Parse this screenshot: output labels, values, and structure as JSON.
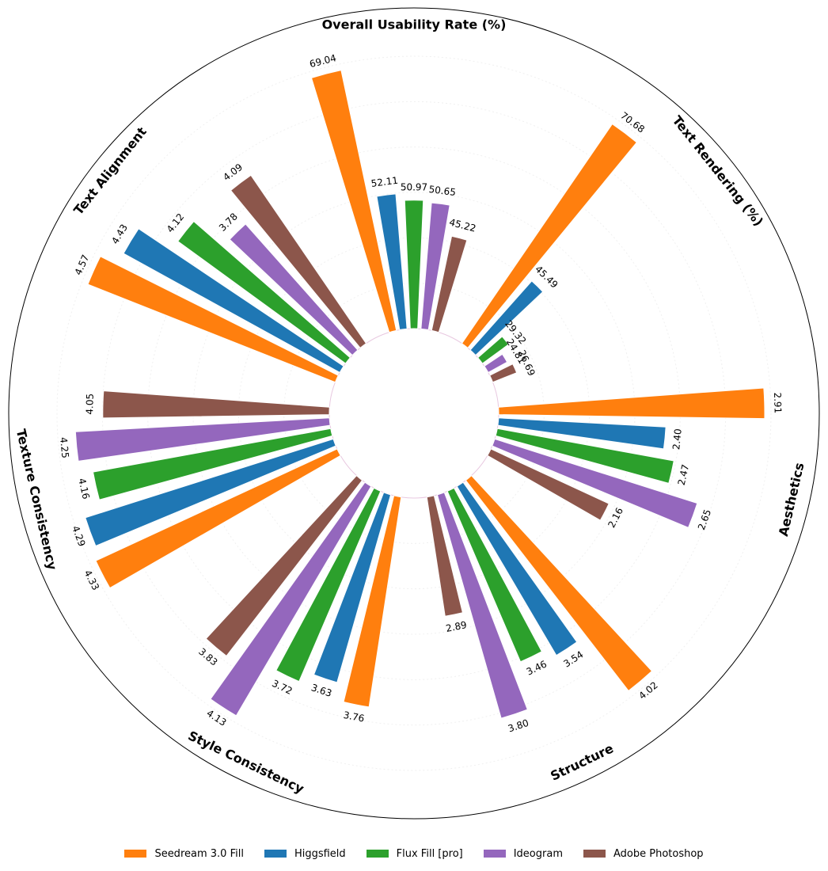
{
  "chart_data": {
    "type": "bar",
    "subtype": "radial-grouped-bar",
    "categories": [
      "Overall Usability Rate (%)",
      "Text Rendering (%)",
      "Aesthetics",
      "Structure",
      "Style Consistency",
      "Texture Consistency",
      "Text Alignment"
    ],
    "series": [
      {
        "name": "Seedream 3.0 Fill",
        "color": "#ff7f0e",
        "values": [
          69.04,
          70.68,
          2.91,
          4.02,
          3.76,
          4.33,
          4.57
        ]
      },
      {
        "name": "Higgsfield",
        "color": "#1f77b4",
        "values": [
          52.11,
          45.49,
          2.4,
          3.54,
          3.63,
          4.29,
          4.43
        ]
      },
      {
        "name": "Flux Fill [pro]",
        "color": "#2ca02c",
        "values": [
          50.97,
          29.32,
          2.47,
          3.46,
          3.72,
          4.16,
          4.12
        ]
      },
      {
        "name": "Ideogram",
        "color": "#9467bd",
        "values": [
          50.65,
          24.81,
          2.65,
          3.8,
          4.13,
          4.25,
          3.78
        ]
      },
      {
        "name": "Adobe Photoshop",
        "color": "#8c564b",
        "values": [
          45.22,
          26.69,
          2.16,
          2.89,
          3.83,
          4.05,
          4.09
        ]
      }
    ],
    "value_labels": [
      [
        "69.04",
        "70.68",
        "2.91",
        "4.02",
        "3.76",
        "4.33",
        "4.57"
      ],
      [
        "52.11",
        "45.49",
        "2.40",
        "3.54",
        "3.63",
        "4.29",
        "4.43"
      ],
      [
        "50.97",
        "29.32",
        "2.47",
        "3.46",
        "3.72",
        "4.16",
        "4.12"
      ],
      [
        "50.65",
        "24.81",
        "2.65",
        "3.80",
        "4.13",
        "4.25",
        "3.78"
      ],
      [
        "45.22",
        "26.69",
        "2.16",
        "2.89",
        "3.83",
        "4.05",
        "4.09"
      ]
    ],
    "grid": true,
    "legend_position": "bottom-center"
  }
}
